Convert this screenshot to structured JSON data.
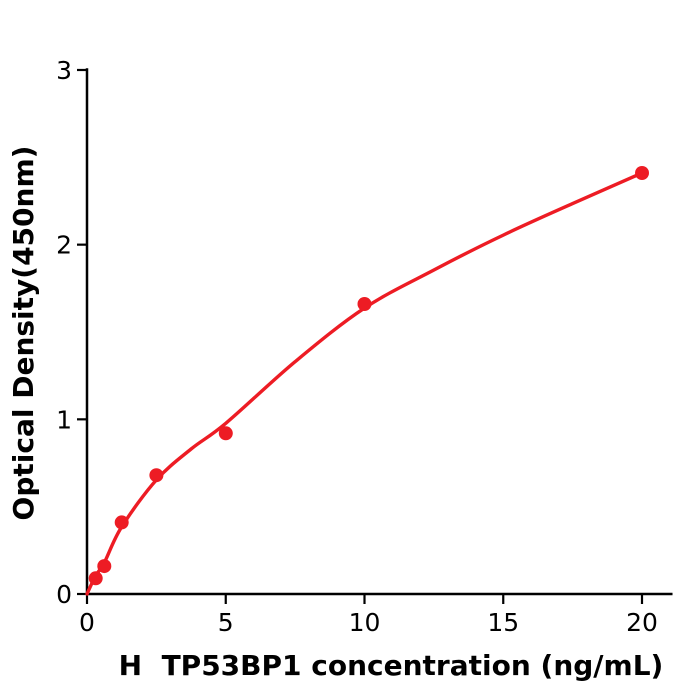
{
  "figure": {
    "background": "#ffffff",
    "axis_color": "#000000",
    "accent_red": "#ed1c24"
  },
  "chart_data": {
    "type": "scatter",
    "title": "",
    "xlabel": "H  TP53BP1 concentration (ng/mL)",
    "ylabel": "Optical Density(450nm)",
    "xlim": [
      0,
      21.1
    ],
    "ylim": [
      0,
      3.01
    ],
    "x_ticks": [
      0,
      5,
      10,
      15,
      20
    ],
    "y_ticks": [
      0,
      1,
      2,
      3
    ],
    "grid": false,
    "legend": "none",
    "point_color": "#ed1c24",
    "curve_color": "#ed1c24",
    "points": [
      {
        "x": 0.313,
        "y": 0.09
      },
      {
        "x": 0.625,
        "y": 0.16
      },
      {
        "x": 1.25,
        "y": 0.41
      },
      {
        "x": 2.5,
        "y": 0.68
      },
      {
        "x": 5,
        "y": 0.92
      },
      {
        "x": 10,
        "y": 1.66
      },
      {
        "x": 20,
        "y": 2.41
      }
    ],
    "fit_curve_samples": [
      {
        "x": 0,
        "y": 0
      },
      {
        "x": 0.313,
        "y": 0.105
      },
      {
        "x": 0.625,
        "y": 0.18
      },
      {
        "x": 1.25,
        "y": 0.385
      },
      {
        "x": 2.5,
        "y": 0.653
      },
      {
        "x": 3.75,
        "y": 0.83
      },
      {
        "x": 5,
        "y": 0.977
      },
      {
        "x": 7.5,
        "y": 1.33
      },
      {
        "x": 10,
        "y": 1.637
      },
      {
        "x": 12.5,
        "y": 1.855
      },
      {
        "x": 15,
        "y": 2.055
      },
      {
        "x": 17.5,
        "y": 2.235
      },
      {
        "x": 20,
        "y": 2.41
      }
    ]
  }
}
